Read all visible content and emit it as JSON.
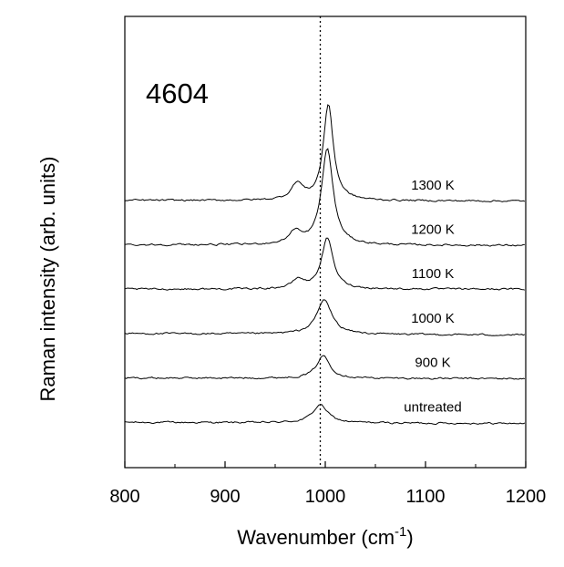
{
  "chart_data": {
    "type": "line",
    "title": "4604",
    "xlabel": "Wavenumber  (cm",
    "xlabel_sup": "-1",
    "xlabel_close": ")",
    "ylabel": "Raman intensity (arb. units)",
    "xlim": [
      800,
      1200
    ],
    "x_ticks": [
      800,
      900,
      1000,
      1100,
      1200
    ],
    "y_ticks": "none",
    "grid": false,
    "reference_line": {
      "x": 995,
      "style": "dotted"
    },
    "series": [
      {
        "name": "untreated",
        "baseline": 0.0,
        "slope": -0.006,
        "peaks": [
          {
            "center": 995,
            "height": 0.1,
            "width": 9
          }
        ],
        "label_x": 1100
      },
      {
        "name": "900 K",
        "baseline": 0.245,
        "slope": -0.004,
        "peaks": [
          {
            "center": 998,
            "height": 0.125,
            "width": 8
          }
        ],
        "label_x": 1100
      },
      {
        "name": "1000 K",
        "baseline": 0.49,
        "slope": -0.008,
        "peaks": [
          {
            "center": 999,
            "height": 0.19,
            "width": 9
          }
        ],
        "label_x": 1100
      },
      {
        "name": "1100 K",
        "baseline": 0.735,
        "slope": 0.0,
        "peaks": [
          {
            "center": 973,
            "height": 0.05,
            "width": 7
          },
          {
            "center": 1002,
            "height": 0.28,
            "width": 7
          }
        ],
        "label_x": 1100
      },
      {
        "name": "1200 K",
        "baseline": 0.98,
        "slope": -0.004,
        "peaks": [
          {
            "center": 970,
            "height": 0.07,
            "width": 7
          },
          {
            "center": 1002,
            "height": 0.53,
            "width": 7
          }
        ],
        "label_x": 1100
      },
      {
        "name": "1300 K",
        "baseline": 1.225,
        "slope": -0.004,
        "peaks": [
          {
            "center": 972,
            "height": 0.09,
            "width": 7
          },
          {
            "center": 1003,
            "height": 0.53,
            "width": 6
          }
        ],
        "label_x": 1100
      }
    ],
    "ylim": [
      -0.25,
      2.24
    ]
  },
  "colors": {
    "line": "#000000",
    "background": "#ffffff"
  }
}
